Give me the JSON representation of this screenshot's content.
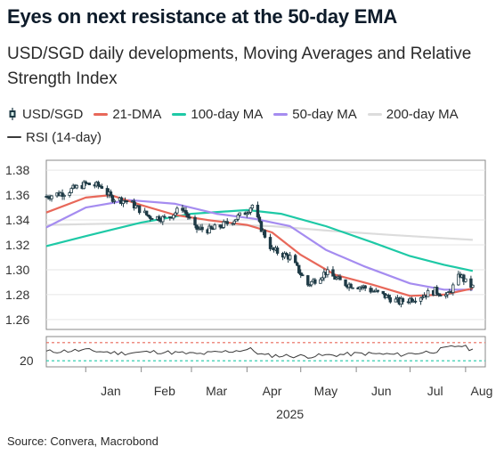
{
  "title": "Eyes on next resistance at the 50-day EMA",
  "subtitle": "USD/SGD daily developments, Moving Averages and Relative Strength Index",
  "source": "Source: Convera, Macrobond",
  "colors": {
    "candle": "#1f3b46",
    "ma21": "#e8685a",
    "ma100": "#1ec9a6",
    "ma50": "#a58cf0",
    "ma200": "#dcdcdc",
    "rsi": "#3a3a3a",
    "rsi_ref": "#1ec9a6",
    "rsi_upper": "#e8685a"
  },
  "legend": [
    {
      "label": "USD/SGD",
      "swatch": "candle",
      "icon": "candlestick-icon"
    },
    {
      "label": "21-DMA",
      "swatch": "ma21"
    },
    {
      "label": "100-day MA",
      "swatch": "ma100"
    },
    {
      "label": "50-day MA",
      "swatch": "ma50"
    },
    {
      "label": "200-day MA",
      "swatch": "ma200"
    },
    {
      "label": "RSI (14-day)",
      "swatch": "rsi"
    }
  ],
  "chart_data": {
    "type": "line",
    "x_axis": {
      "ticks": [
        "Jan",
        "Feb",
        "Mar",
        "Apr",
        "May",
        "Jun",
        "Jul",
        "Aug"
      ],
      "year_label": "2025"
    },
    "main_panel": {
      "ylim": [
        1.252,
        1.388
      ],
      "yticks": [
        "1.26",
        "1.28",
        "1.30",
        "1.32",
        "1.34",
        "1.36",
        "1.38"
      ],
      "grid": "horizontal",
      "candles": {
        "name": "USD/SGD",
        "close_anchors": [
          [
            "2024-12-10",
            1.359
          ],
          [
            "2024-12-20",
            1.362
          ],
          [
            "2025-01-01",
            1.369
          ],
          [
            "2025-01-10",
            1.367
          ],
          [
            "2025-01-15",
            1.358
          ],
          [
            "2025-01-25",
            1.355
          ],
          [
            "2025-02-05",
            1.343
          ],
          [
            "2025-02-15",
            1.341
          ],
          [
            "2025-02-24",
            1.35
          ],
          [
            "2025-03-03",
            1.333
          ],
          [
            "2025-03-12",
            1.332
          ],
          [
            "2025-03-22",
            1.338
          ],
          [
            "2025-03-31",
            1.346
          ],
          [
            "2025-04-04",
            1.352
          ],
          [
            "2025-04-08",
            1.336
          ],
          [
            "2025-04-15",
            1.316
          ],
          [
            "2025-04-25",
            1.31
          ],
          [
            "2025-05-05",
            1.288
          ],
          [
            "2025-05-15",
            1.298
          ],
          [
            "2025-05-25",
            1.289
          ],
          [
            "2025-06-05",
            1.286
          ],
          [
            "2025-06-15",
            1.28
          ],
          [
            "2025-06-25",
            1.274
          ],
          [
            "2025-07-05",
            1.278
          ],
          [
            "2025-07-15",
            1.283
          ],
          [
            "2025-07-22",
            1.279
          ],
          [
            "2025-07-29",
            1.296
          ],
          [
            "2025-08-01",
            1.29
          ],
          [
            "2025-08-05",
            1.286
          ]
        ]
      },
      "lines": [
        {
          "name": "21-DMA",
          "color_key": "ma21",
          "points": [
            [
              "2024-12-10",
              1.346
            ],
            [
              "2025-01-01",
              1.358
            ],
            [
              "2025-01-15",
              1.36
            ],
            [
              "2025-02-01",
              1.352
            ],
            [
              "2025-02-20",
              1.344
            ],
            [
              "2025-03-10",
              1.34
            ],
            [
              "2025-04-01",
              1.336
            ],
            [
              "2025-04-15",
              1.33
            ],
            [
              "2025-05-01",
              1.312
            ],
            [
              "2025-05-20",
              1.296
            ],
            [
              "2025-06-10",
              1.288
            ],
            [
              "2025-07-01",
              1.279
            ],
            [
              "2025-07-20",
              1.28
            ],
            [
              "2025-08-05",
              1.285
            ]
          ]
        },
        {
          "name": "100-day MA",
          "color_key": "ma100",
          "points": [
            [
              "2024-12-10",
              1.319
            ],
            [
              "2025-01-01",
              1.327
            ],
            [
              "2025-02-01",
              1.338
            ],
            [
              "2025-03-01",
              1.345
            ],
            [
              "2025-04-01",
              1.348
            ],
            [
              "2025-04-20",
              1.345
            ],
            [
              "2025-05-15",
              1.335
            ],
            [
              "2025-06-10",
              1.322
            ],
            [
              "2025-07-01",
              1.311
            ],
            [
              "2025-07-20",
              1.304
            ],
            [
              "2025-08-05",
              1.299
            ]
          ]
        },
        {
          "name": "50-day MA",
          "color_key": "ma50",
          "points": [
            [
              "2024-12-10",
              1.334
            ],
            [
              "2025-01-01",
              1.35
            ],
            [
              "2025-01-25",
              1.356
            ],
            [
              "2025-02-20",
              1.353
            ],
            [
              "2025-03-15",
              1.345
            ],
            [
              "2025-04-05",
              1.341
            ],
            [
              "2025-04-25",
              1.335
            ],
            [
              "2025-05-15",
              1.316
            ],
            [
              "2025-06-05",
              1.303
            ],
            [
              "2025-07-01",
              1.289
            ],
            [
              "2025-07-20",
              1.284
            ],
            [
              "2025-08-05",
              1.284
            ]
          ]
        },
        {
          "name": "200-day MA",
          "color_key": "ma200",
          "points": [
            [
              "2024-12-10",
              1.336
            ],
            [
              "2025-01-15",
              1.337
            ],
            [
              "2025-03-01",
              1.337
            ],
            [
              "2025-04-15",
              1.335
            ],
            [
              "2025-05-20",
              1.331
            ],
            [
              "2025-06-20",
              1.328
            ],
            [
              "2025-08-05",
              1.324
            ]
          ]
        }
      ]
    },
    "rsi_panel": {
      "ylim": [
        0,
        100
      ],
      "yticks": [
        "20"
      ],
      "reference_lines": [
        {
          "value": 20,
          "color_key": "rsi_ref"
        },
        {
          "value": 80,
          "color_key": "rsi_upper"
        }
      ],
      "series": {
        "name": "RSI (14-day)",
        "color_key": "rsi",
        "points": [
          [
            "2024-12-10",
            50
          ],
          [
            "2025-01-01",
            55
          ],
          [
            "2025-01-20",
            45
          ],
          [
            "2025-02-10",
            50
          ],
          [
            "2025-03-05",
            42
          ],
          [
            "2025-04-03",
            58
          ],
          [
            "2025-04-10",
            38
          ],
          [
            "2025-05-05",
            35
          ],
          [
            "2025-06-05",
            44
          ],
          [
            "2025-06-25",
            40
          ],
          [
            "2025-07-15",
            52
          ],
          [
            "2025-07-29",
            72
          ],
          [
            "2025-08-05",
            55
          ]
        ]
      }
    }
  }
}
